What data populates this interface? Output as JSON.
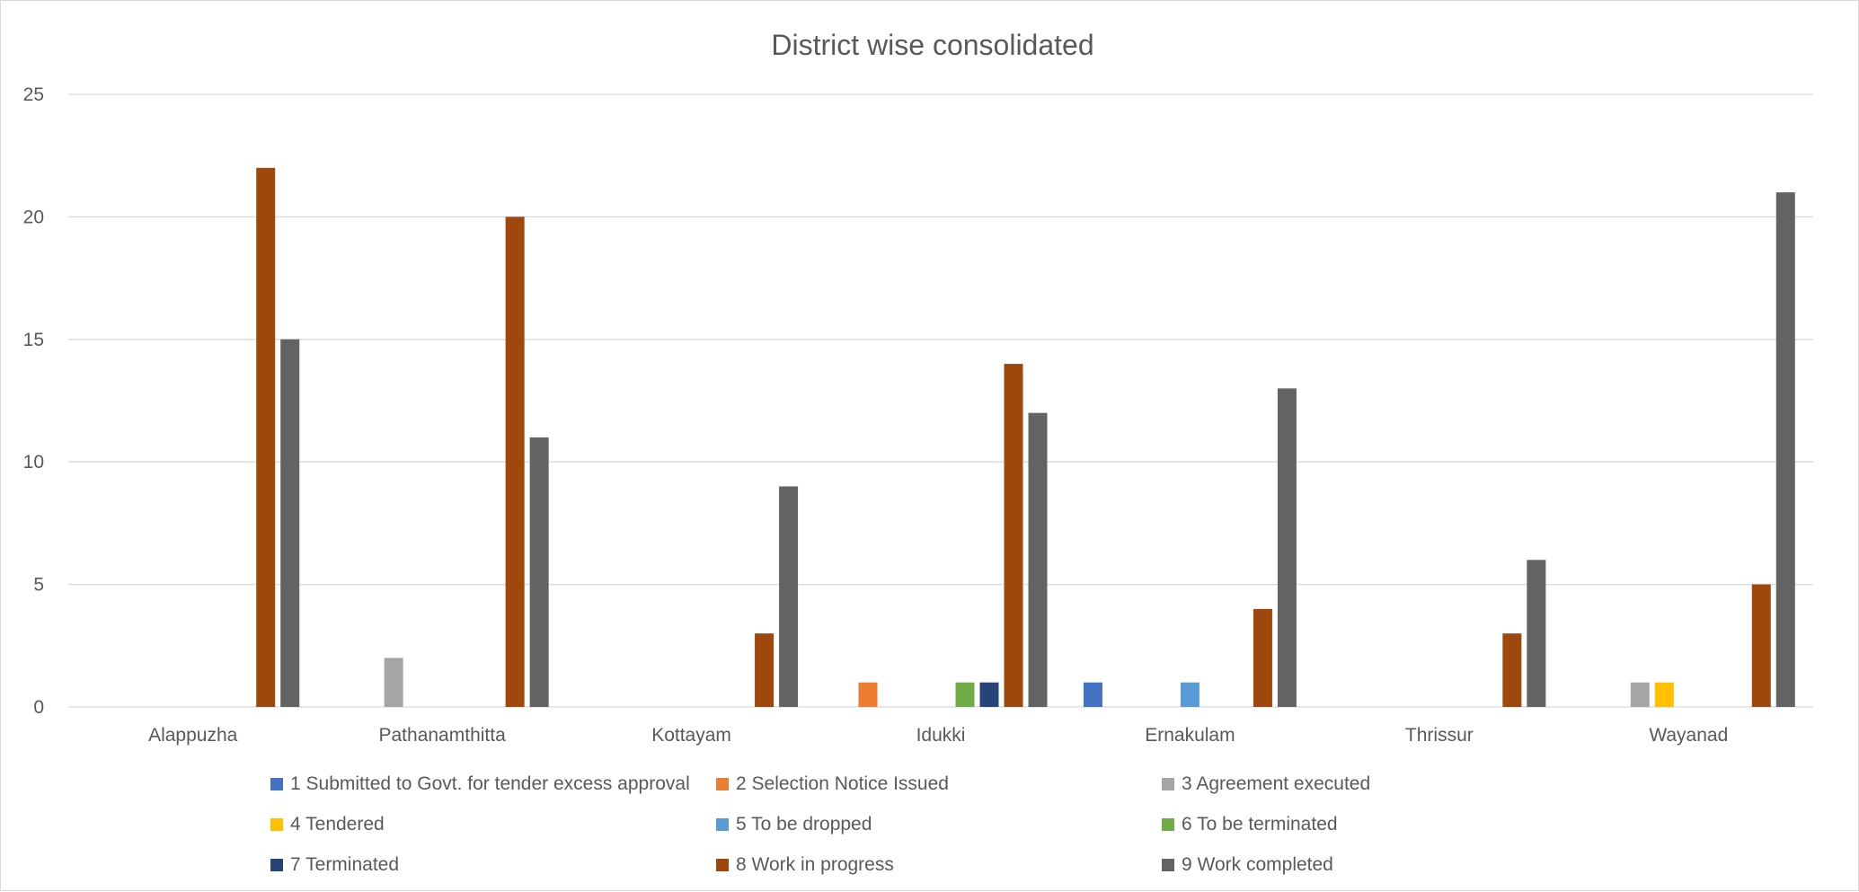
{
  "chart_data": {
    "type": "bar",
    "title": "District wise consolidated",
    "categories": [
      "Alappuzha",
      "Pathanamthitta",
      "Kottayam",
      "Idukki",
      "Ernakulam",
      "Thrissur",
      "Wayanad"
    ],
    "ylim": [
      0,
      25
    ],
    "yticks": [
      0,
      5,
      10,
      15,
      20,
      25
    ],
    "grid": true,
    "legend_position": "bottom",
    "series": [
      {
        "name": "1 Submitted to Govt. for tender excess approval",
        "color": "#4472C4",
        "values": [
          0,
          0,
          0,
          0,
          1,
          0,
          0
        ]
      },
      {
        "name": "2 Selection Notice Issued",
        "color": "#ED7D31",
        "values": [
          0,
          0,
          0,
          1,
          0,
          0,
          0
        ]
      },
      {
        "name": "3 Agreement executed",
        "color": "#A5A5A5",
        "values": [
          0,
          2,
          0,
          0,
          0,
          0,
          1
        ]
      },
      {
        "name": "4 Tendered",
        "color": "#FFC000",
        "values": [
          0,
          0,
          0,
          0,
          0,
          0,
          1
        ]
      },
      {
        "name": "5 To be dropped",
        "color": "#5B9BD5",
        "values": [
          0,
          0,
          0,
          0,
          1,
          0,
          0
        ]
      },
      {
        "name": "6 To be terminated",
        "color": "#70AD47",
        "values": [
          0,
          0,
          0,
          1,
          0,
          0,
          0
        ]
      },
      {
        "name": "7 Terminated",
        "color": "#264478",
        "values": [
          0,
          0,
          0,
          1,
          0,
          0,
          0
        ]
      },
      {
        "name": "8 Work in progress",
        "color": "#9E480E",
        "values": [
          22,
          20,
          3,
          14,
          4,
          3,
          5
        ]
      },
      {
        "name": "9 Work completed",
        "color": "#636363",
        "values": [
          15,
          11,
          9,
          12,
          13,
          6,
          21
        ]
      }
    ]
  }
}
